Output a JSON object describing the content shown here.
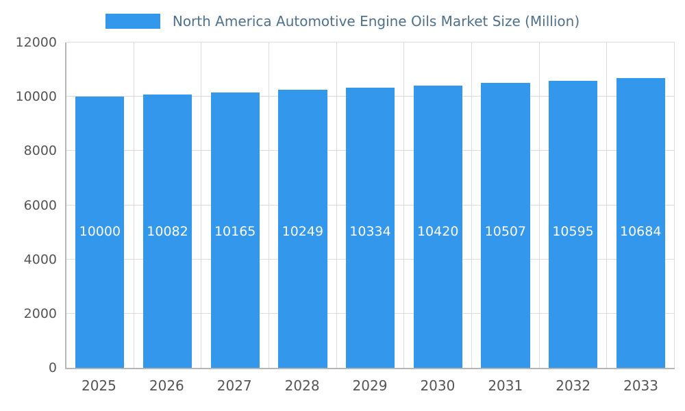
{
  "chart_data": {
    "type": "bar",
    "title": "North America Automotive Engine Oils Market Size (Million)",
    "categories": [
      "2025",
      "2026",
      "2027",
      "2028",
      "2029",
      "2030",
      "2031",
      "2032",
      "2033"
    ],
    "values": [
      10000,
      10082,
      10165,
      10249,
      10334,
      10420,
      10507,
      10595,
      10684
    ],
    "xlabel": "",
    "ylabel": "",
    "ylim": [
      0,
      12000
    ],
    "ytick_step": 2000,
    "grid": true,
    "legend_position": "top",
    "bar_color": "#3398EC",
    "value_label_color": "#ffffff",
    "title_color": "#4d708f",
    "tick_label_color": "#555555",
    "gridline_color": "#dcdcdc"
  }
}
